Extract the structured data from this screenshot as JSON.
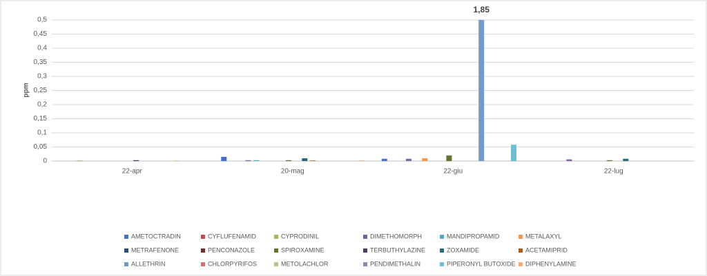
{
  "chart_data": {
    "type": "bar",
    "y_label": "ppm",
    "categories": [
      "22-apr",
      "20-mag",
      "22-giu",
      "22-lug"
    ],
    "ylim": [
      0,
      0.5
    ],
    "yticks": [
      0,
      {
        "value": 0.05,
        "label": "0,05"
      },
      {
        "value": 0.1,
        "label": "0,1"
      },
      {
        "value": 0.15,
        "label": "0,15"
      },
      {
        "value": 0.2,
        "label": "0,2"
      },
      {
        "value": 0.25,
        "label": "0,25"
      },
      {
        "value": 0.3,
        "label": "0,3"
      },
      {
        "value": 0.35,
        "label": "0,35"
      },
      {
        "value": 0.4,
        "label": "0,4"
      },
      {
        "value": 0.45,
        "label": "0,45"
      },
      {
        "value": 0.5,
        "label": "0,5"
      }
    ],
    "grid": true,
    "legend": "bottom",
    "series": [
      {
        "name": "AMETOCTRADIN",
        "color": "#4472c4",
        "values": [
          0,
          0.015,
          0.008,
          0
        ]
      },
      {
        "name": "CYFLUFENAMID",
        "color": "#c0504d",
        "values": [
          0,
          0,
          0,
          0
        ]
      },
      {
        "name": "CYPRODINIL",
        "color": "#9bbb59",
        "values": [
          0.002,
          0,
          0,
          0
        ]
      },
      {
        "name": "DIMETHOMORPH",
        "color": "#8064a2",
        "values": [
          0,
          0.003,
          0.008,
          0.006
        ]
      },
      {
        "name": "MANDIPROPAMID",
        "color": "#4bacc6",
        "values": [
          0,
          0.003,
          0,
          0
        ]
      },
      {
        "name": "METALAXYL",
        "color": "#f79646",
        "values": [
          0,
          0,
          0.01,
          0
        ]
      },
      {
        "name": "METRAFENONE",
        "color": "#2c4d75",
        "values": [
          0,
          0,
          0,
          0
        ]
      },
      {
        "name": "PENCONAZOLE",
        "color": "#772c2a",
        "values": [
          0,
          0,
          0,
          0
        ]
      },
      {
        "name": "SPIROXAMINE",
        "color": "#5f7530",
        "values": [
          0,
          0.003,
          0.02,
          0.003
        ]
      },
      {
        "name": "TERBUTHYLAZINE",
        "color": "#4d3b62",
        "values": [
          0.003,
          0,
          0,
          0
        ]
      },
      {
        "name": "ZOXAMIDE",
        "color": "#276a7c",
        "values": [
          0,
          0.01,
          0,
          0.008
        ]
      },
      {
        "name": "ACETAMIPRID",
        "color": "#b65708",
        "values": [
          0,
          0.002,
          0,
          0
        ]
      },
      {
        "name": "ALLETHRIN",
        "color": "#729aca",
        "values": [
          0,
          0,
          1.85,
          0
        ],
        "value_labels": [
          null,
          null,
          "1,85",
          null
        ]
      },
      {
        "name": "CHLORPYRIFOS",
        "color": "#cd7371",
        "values": [
          0,
          0,
          0,
          0
        ]
      },
      {
        "name": "METOLACHLOR",
        "color": "#afc97a",
        "values": [
          0.002,
          0,
          0,
          0
        ]
      },
      {
        "name": "PENDIMETHALIN",
        "color": "#9983b5",
        "values": [
          0,
          0,
          0,
          0
        ]
      },
      {
        "name": "PIPERONYL BUTOXIDE",
        "color": "#6fbdd1",
        "values": [
          0,
          0,
          0.058,
          0
        ]
      },
      {
        "name": "DIPHENYLAMINE",
        "color": "#f9ab6b",
        "values": [
          0,
          0.002,
          0,
          0
        ]
      }
    ]
  }
}
